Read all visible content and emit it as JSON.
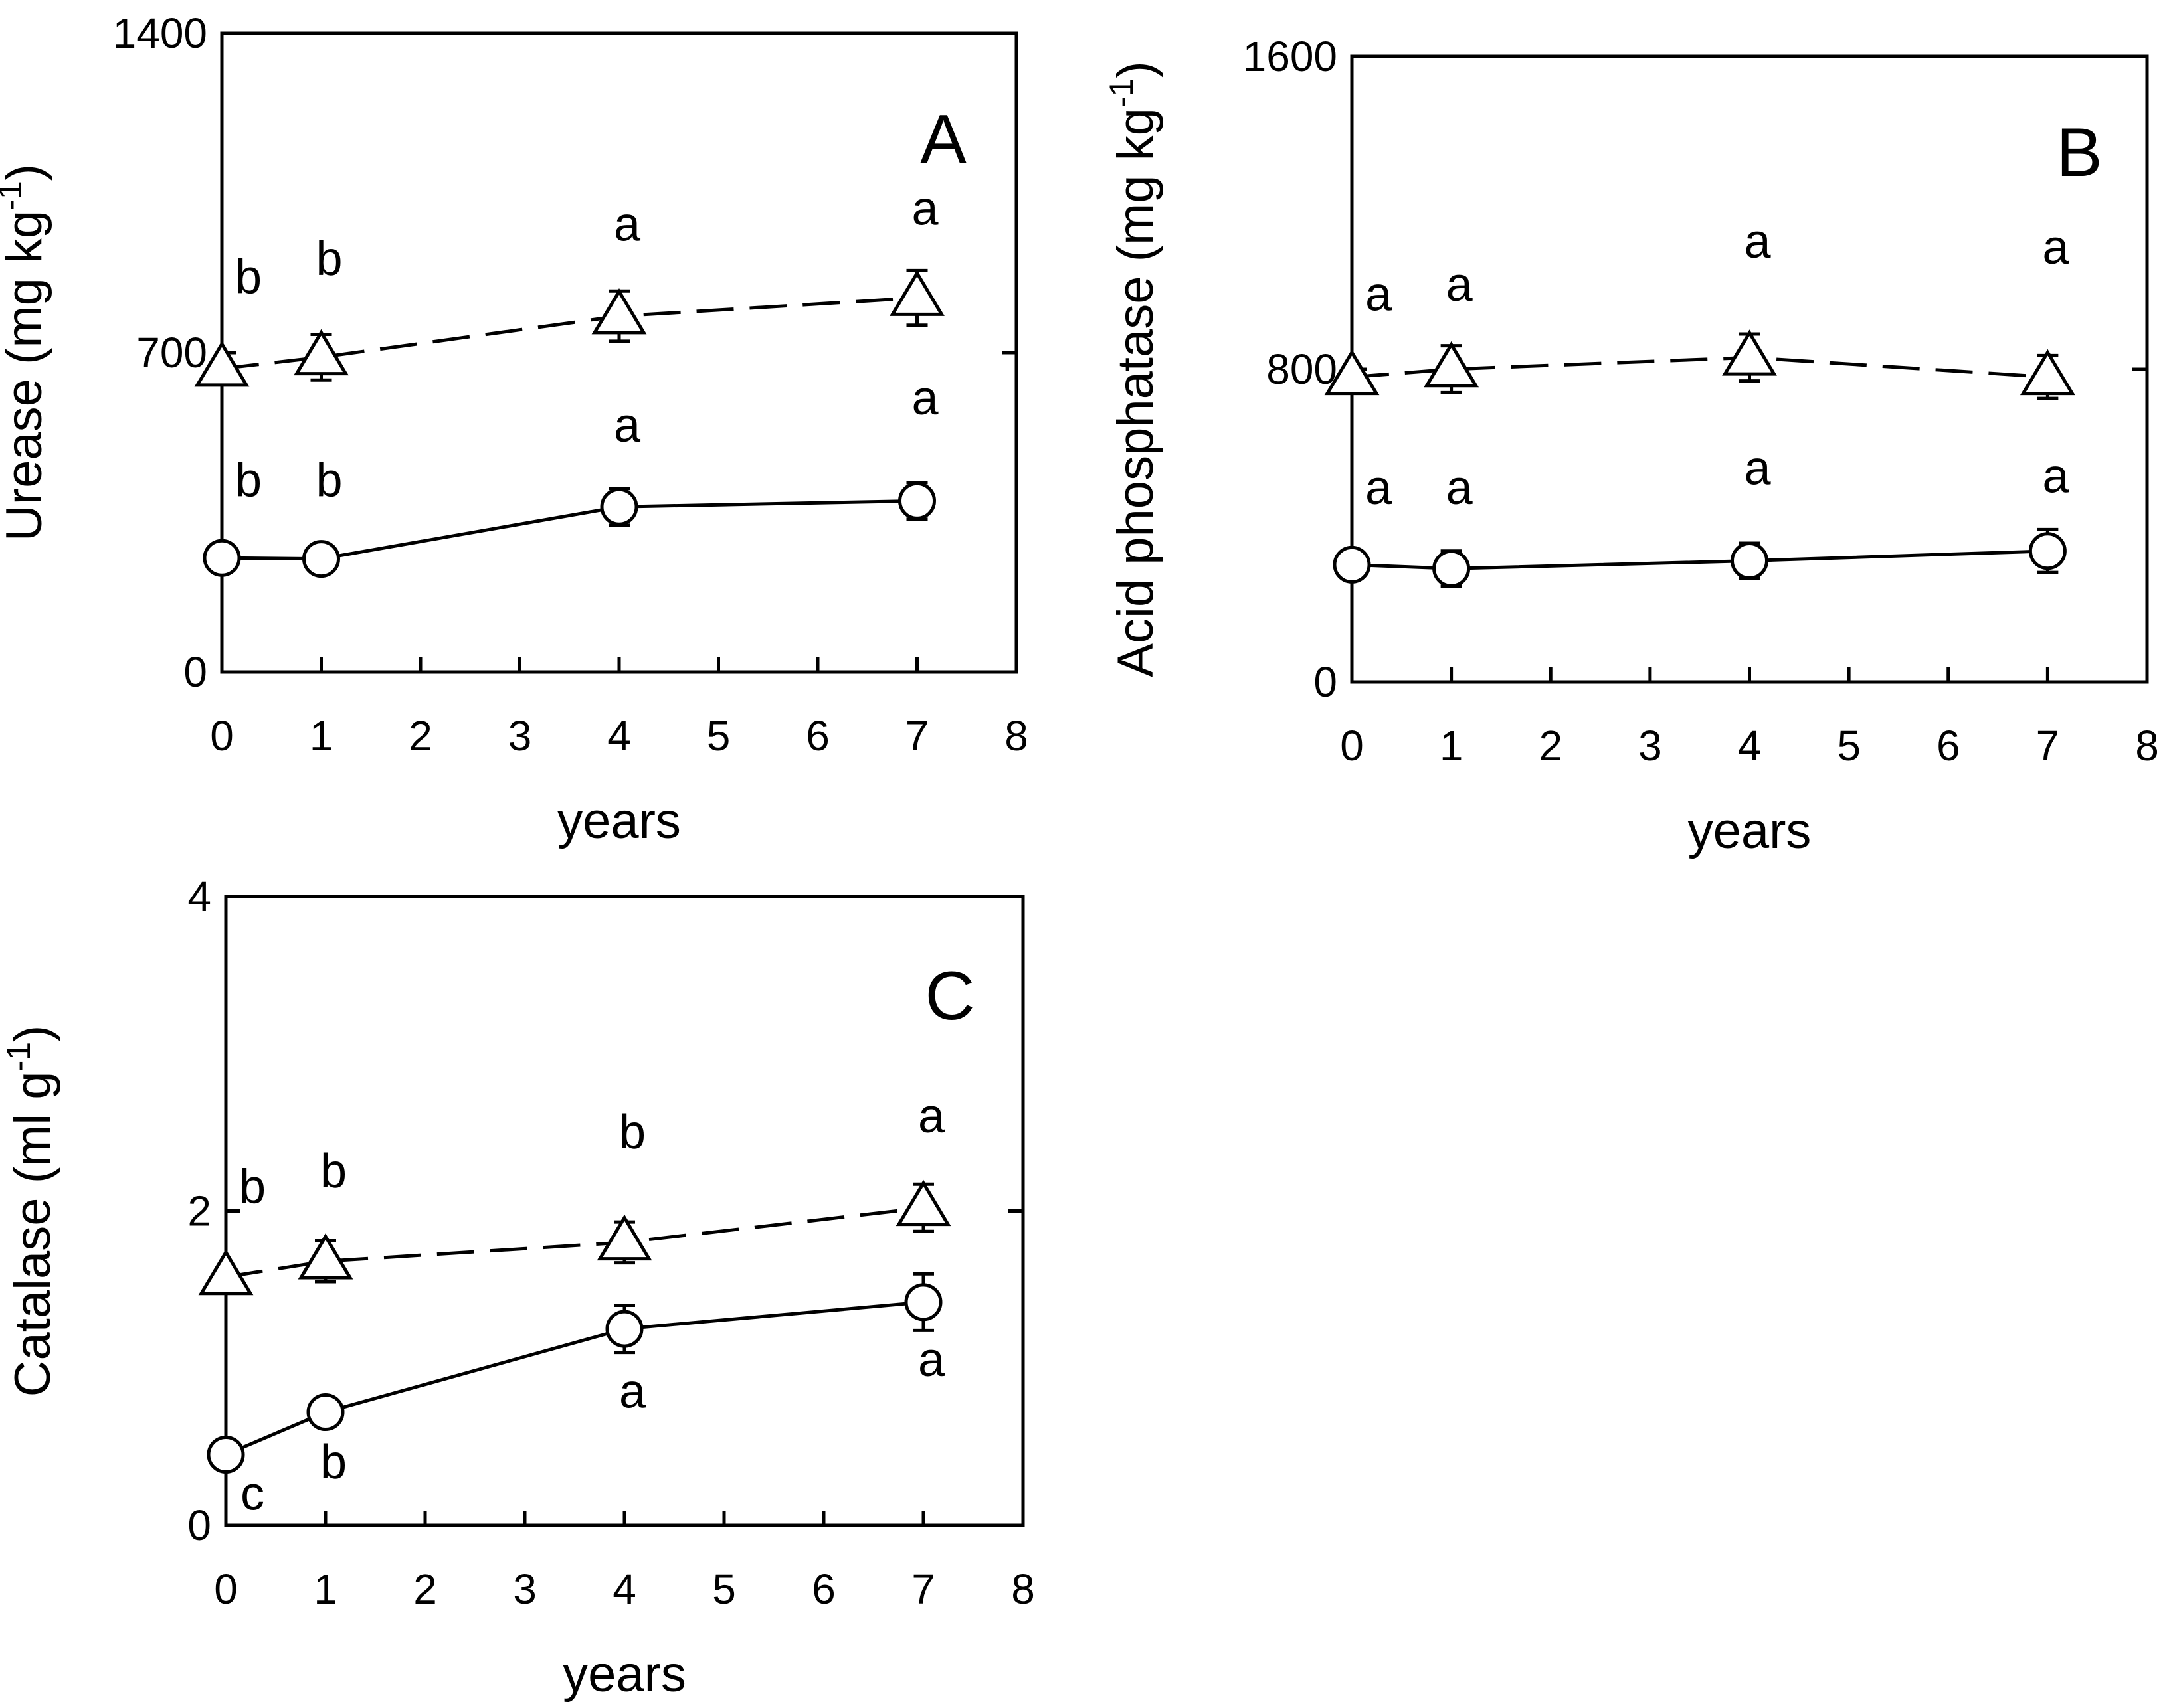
{
  "chart_data": [
    {
      "id": "A",
      "type": "line",
      "panel_label": "A",
      "xlabel": "years",
      "ylabel_main": "Urease (mg kg",
      "ylabel_sup": "-1",
      "ylabel_end": ")",
      "xlim": [
        0,
        8
      ],
      "ylim": [
        0,
        1400
      ],
      "xticks": [
        0,
        1,
        2,
        3,
        4,
        5,
        6,
        7,
        8
      ],
      "xtick_labels": [
        "0",
        "1",
        "2",
        "3",
        "4",
        "5",
        "6",
        "7",
        "8"
      ],
      "yticks": [
        0,
        700,
        1400
      ],
      "ytick_labels": [
        "0",
        "700",
        "1400"
      ],
      "x": [
        0,
        1,
        4,
        7
      ],
      "series": [
        {
          "name": "triangle-dashed",
          "marker": "triangle",
          "line": "dashed",
          "values": [
            665,
            690,
            780,
            820
          ],
          "errors": [
            0,
            50,
            55,
            60
          ],
          "sig": [
            "b",
            "b",
            "a",
            "a"
          ],
          "sig_y": [
            830,
            870,
            945,
            980
          ]
        },
        {
          "name": "circle-solid",
          "marker": "circle",
          "line": "solid",
          "values": [
            250,
            248,
            362,
            375
          ],
          "errors": [
            0,
            0,
            40,
            40
          ],
          "sig": [
            "b",
            "b",
            "a",
            "a"
          ],
          "sig_y": [
            385,
            385,
            505,
            565
          ]
        }
      ]
    },
    {
      "id": "B",
      "type": "line",
      "panel_label": "B",
      "xlabel": "years",
      "ylabel_main": "Acid phosphatase (mg kg",
      "ylabel_sup": "-1",
      "ylabel_end": ")",
      "xlim": [
        0,
        8
      ],
      "ylim": [
        0,
        1600
      ],
      "xticks": [
        0,
        1,
        2,
        3,
        4,
        5,
        6,
        7,
        8
      ],
      "xtick_labels": [
        "0",
        "1",
        "2",
        "3",
        "4",
        "5",
        "6",
        "7",
        "8"
      ],
      "yticks": [
        0,
        800,
        1600
      ],
      "ytick_labels": [
        "0",
        "800",
        "1600"
      ],
      "x": [
        0,
        1,
        4,
        7
      ],
      "series": [
        {
          "name": "triangle-dashed",
          "marker": "triangle",
          "line": "dashed",
          "values": [
            780,
            800,
            830,
            780
          ],
          "errors": [
            0,
            60,
            60,
            55
          ],
          "sig": [
            "a",
            "a",
            "a",
            "a"
          ],
          "sig_y": [
            950,
            975,
            1085,
            1070
          ]
        },
        {
          "name": "circle-solid",
          "marker": "circle",
          "line": "solid",
          "values": [
            300,
            290,
            310,
            335
          ],
          "errors": [
            0,
            45,
            45,
            55
          ],
          "sig": [
            "a",
            "a",
            "a",
            "a"
          ],
          "sig_y": [
            455,
            455,
            505,
            485
          ]
        }
      ]
    },
    {
      "id": "C",
      "type": "line",
      "panel_label": "C",
      "xlabel": "years",
      "ylabel_main": "Catalase (ml g",
      "ylabel_sup": "-1",
      "ylabel_end": ")",
      "xlim": [
        0,
        8
      ],
      "ylim": [
        0,
        4
      ],
      "xticks": [
        0,
        1,
        2,
        3,
        4,
        5,
        6,
        7,
        8
      ],
      "xtick_labels": [
        "0",
        "1",
        "2",
        "3",
        "4",
        "5",
        "6",
        "7",
        "8"
      ],
      "yticks": [
        0,
        2,
        4
      ],
      "ytick_labels": [
        "0",
        "2",
        "4"
      ],
      "x": [
        0,
        1,
        4,
        7
      ],
      "series": [
        {
          "name": "triangle-dashed",
          "marker": "triangle",
          "line": "dashed",
          "values": [
            1.58,
            1.68,
            1.8,
            2.02
          ],
          "errors": [
            0,
            0.13,
            0.13,
            0.15
          ],
          "sig": [
            "b",
            "b",
            "b",
            "a"
          ],
          "sig_y": [
            2.05,
            2.15,
            2.4,
            2.5
          ]
        },
        {
          "name": "circle-solid",
          "marker": "circle",
          "line": "solid",
          "values": [
            0.45,
            0.72,
            1.25,
            1.42
          ],
          "errors": [
            0,
            0,
            0.15,
            0.18
          ],
          "sig": [
            "c",
            "b",
            "a",
            "a"
          ],
          "sig_y": [
            0.1,
            0.3,
            0.75,
            0.95
          ]
        }
      ]
    }
  ]
}
